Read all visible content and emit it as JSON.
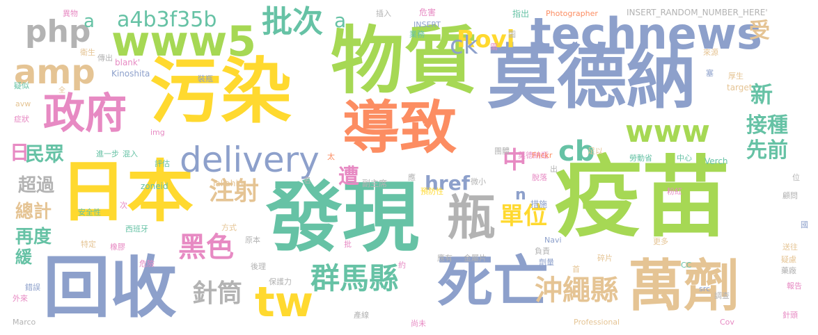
{
  "words": {
    "w1": "疫苗",
    "w2": "物質",
    "w3": "莫德納",
    "w4": "污染",
    "w5": "發現",
    "w6": "日本",
    "w7": "回收",
    "w8": "導致",
    "w9": "死亡",
    "w10": "萬劑",
    "w11": "technews",
    "w12": "www5",
    "w13": "delivery",
    "w14": "政府",
    "w15": "amp",
    "w16": "php",
    "w17": "www",
    "w18": "cb",
    "w19": "tw",
    "w20": "瓶",
    "w21": "群馬縣",
    "w22": "沖繩縣",
    "w23": "黑色",
    "w24": "針筒",
    "w25": "注射",
    "w26": "a4b3f35b",
    "w27": "批次",
    "w28": "Rovi",
    "w29": "受",
    "w30": "新",
    "w31": "接種",
    "w32": "先前",
    "w33": "民眾",
    "w34": "日",
    "w35": "超過",
    "w36": "總計",
    "w37": "再度",
    "w38": "緩",
    "w39": "單位",
    "w40": "中",
    "w41": "ck",
    "w42": "a",
    "w43": "a",
    "w44": "href",
    "w45": "遭",
    "w46": "n"
  },
  "small_words": [
    "異物",
    "衛生",
    "傳出",
    "疑似",
    "症狀",
    "avw",
    "全",
    "blank'",
    "Kinoshita",
    "插入",
    "危害",
    "業務",
    "INSERT",
    "指出",
    "Photographer",
    "INSERT_RANDOM_NUMBER_HERE'",
    "需",
    "圖",
    "來源",
    "塞",
    "厚生",
    "target",
    "足以",
    "莫德納瓶",
    "團體",
    "裝瓶",
    "img",
    "評估",
    "進一步",
    "混入",
    "zoneid",
    "太",
    "Flickr",
    "中心",
    "勞動省",
    "Verch",
    "位",
    "名",
    "Takahiro",
    "副主席",
    "應",
    "微小",
    "脫落",
    "措施",
    "出",
    "預防性",
    "粉紅",
    "顧問",
    "安全性",
    "西班牙",
    "次",
    "方式",
    "原本",
    "特定",
    "橡膠",
    "批",
    "Navi",
    "更多",
    "國",
    "危險",
    "後理",
    "保護力",
    "約",
    "應有",
    "金屬片",
    "負責",
    "劑量",
    "首",
    "碎片",
    "CC",
    "送往",
    "疑慮",
    "藥廠",
    "錯誤",
    "外來",
    "Marco",
    "產線",
    "尚未",
    "Professional",
    "src",
    "調查",
    "Cov",
    "報告",
    "針頭"
  ]
}
